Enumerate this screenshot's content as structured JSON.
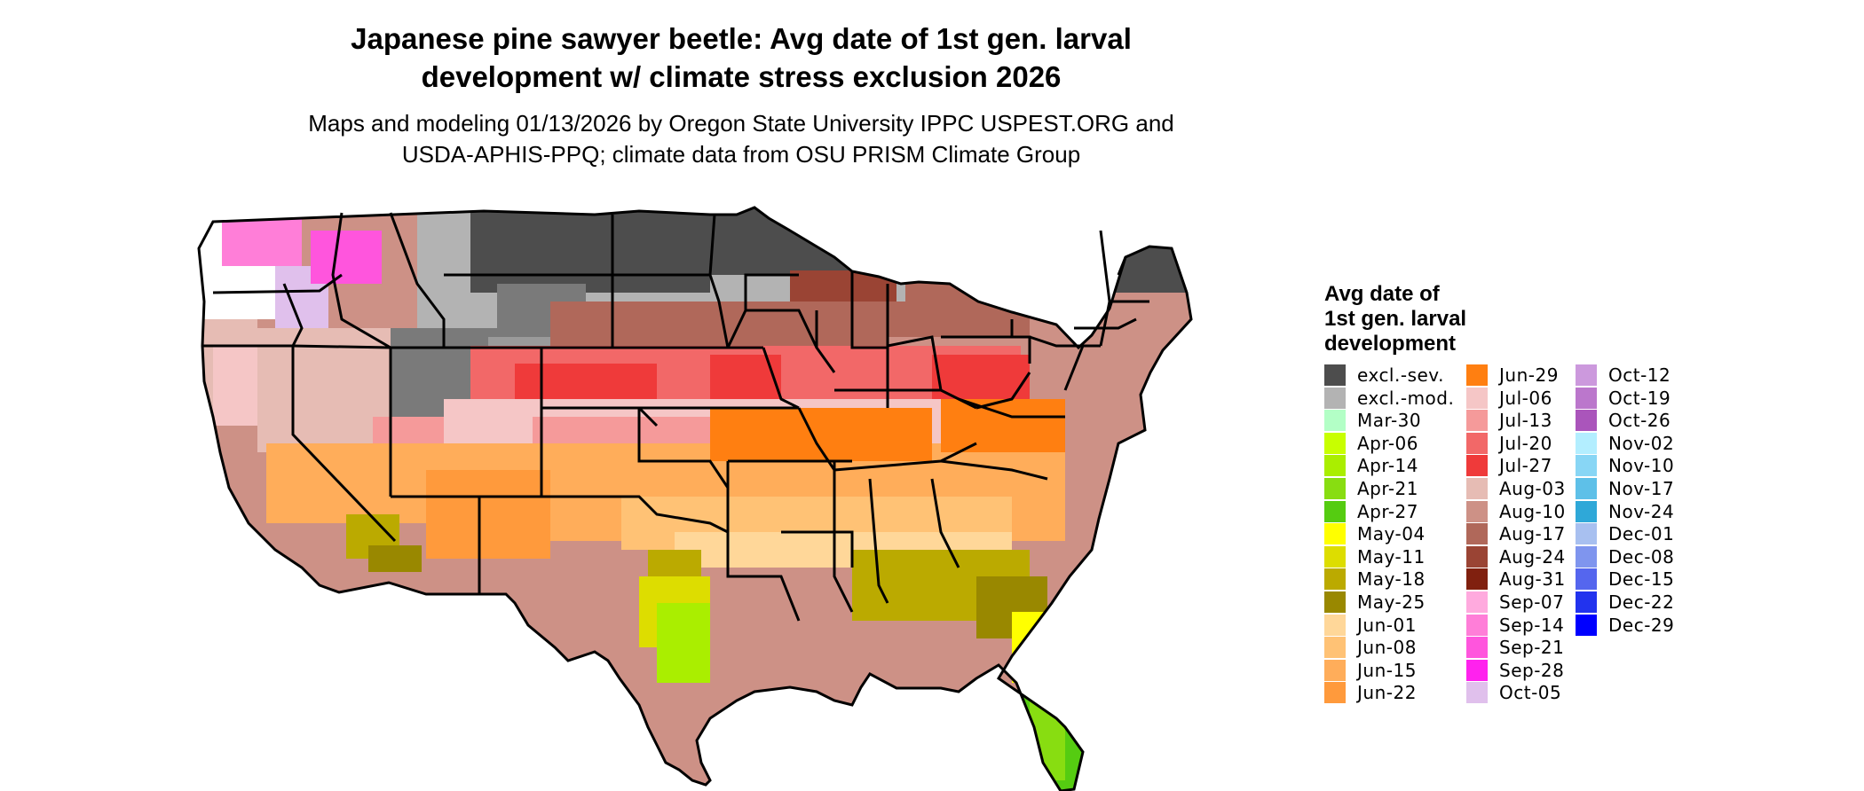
{
  "title": {
    "line1": "Japanese pine sawyer beetle: Avg date of 1st gen. larval",
    "line2": "development w/ climate stress exclusion 2026"
  },
  "subtitle": {
    "line1": "Maps and modeling 01/13/2026 by Oregon State University IPPC USPEST.ORG and",
    "line2": "USDA-APHIS-PPQ; climate data from OSU PRISM Climate Group"
  },
  "legend": {
    "title_line1": "Avg date of",
    "title_line2": "1st gen. larval",
    "title_line3": "development",
    "columns": [
      [
        {
          "label": "excl.-sev.",
          "color": "#4d4d4d"
        },
        {
          "label": "excl.-mod.",
          "color": "#b3b3b3"
        },
        {
          "label": "Mar-30",
          "color": "#b3ffc6"
        },
        {
          "label": "Apr-06",
          "color": "#c8ff00"
        },
        {
          "label": "Apr-14",
          "color": "#aaee00"
        },
        {
          "label": "Apr-21",
          "color": "#88dd11"
        },
        {
          "label": "Apr-27",
          "color": "#55cc11"
        },
        {
          "label": "May-04",
          "color": "#ffff00"
        },
        {
          "label": "May-11",
          "color": "#dddd00"
        },
        {
          "label": "May-18",
          "color": "#bbaa00"
        },
        {
          "label": "May-25",
          "color": "#998800"
        },
        {
          "label": "Jun-01",
          "color": "#ffd799"
        },
        {
          "label": "Jun-08",
          "color": "#ffc275"
        },
        {
          "label": "Jun-15",
          "color": "#ffad5a"
        },
        {
          "label": "Jun-22",
          "color": "#ff9a3c"
        }
      ],
      [
        {
          "label": "Jun-29",
          "color": "#ff7f11"
        },
        {
          "label": "Jul-06",
          "color": "#f5c6c6"
        },
        {
          "label": "Jul-13",
          "color": "#f59a9a"
        },
        {
          "label": "Jul-20",
          "color": "#f26868"
        },
        {
          "label": "Jul-27",
          "color": "#ef3a3a"
        },
        {
          "label": "Aug-03",
          "color": "#e6bcb4"
        },
        {
          "label": "Aug-10",
          "color": "#cd9186"
        },
        {
          "label": "Aug-17",
          "color": "#b0685a"
        },
        {
          "label": "Aug-24",
          "color": "#9a4434"
        },
        {
          "label": "Aug-31",
          "color": "#80200f"
        },
        {
          "label": "Sep-07",
          "color": "#ffaade"
        },
        {
          "label": "Sep-14",
          "color": "#ff7ed8"
        },
        {
          "label": "Sep-21",
          "color": "#ff55dd"
        },
        {
          "label": "Sep-28",
          "color": "#ff22ee"
        },
        {
          "label": "Oct-05",
          "color": "#e0c0ec"
        }
      ],
      [
        {
          "label": "Oct-12",
          "color": "#cc99dd"
        },
        {
          "label": "Oct-19",
          "color": "#bb77cc"
        },
        {
          "label": "Oct-26",
          "color": "#aa55bb"
        },
        {
          "label": "Nov-02",
          "color": "#b3eeff"
        },
        {
          "label": "Nov-10",
          "color": "#88d6f5"
        },
        {
          "label": "Nov-17",
          "color": "#5ec0e8"
        },
        {
          "label": "Nov-24",
          "color": "#2fa8d8"
        },
        {
          "label": "Dec-01",
          "color": "#a8c0f0"
        },
        {
          "label": "Dec-08",
          "color": "#7f95ee"
        },
        {
          "label": "Dec-15",
          "color": "#5566ee"
        },
        {
          "label": "Dec-22",
          "color": "#2233ee"
        },
        {
          "label": "Dec-29",
          "color": "#0000ff"
        }
      ]
    ]
  }
}
